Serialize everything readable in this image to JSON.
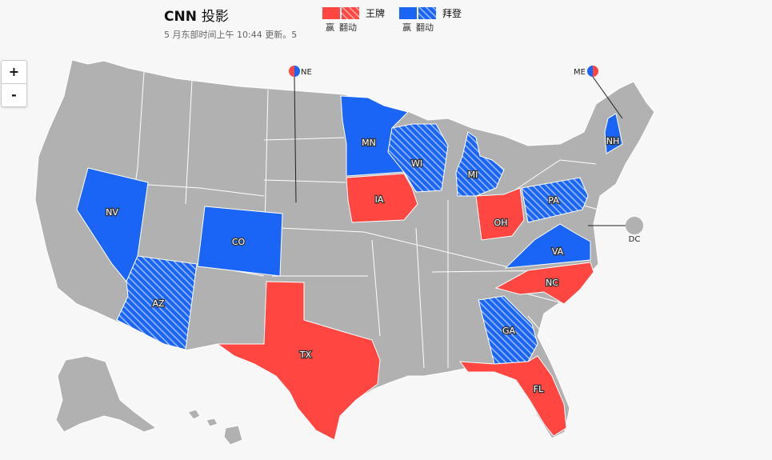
{
  "header": {
    "brand": "CNN",
    "label": "投影",
    "updated": "5 月东部时间上午 10:44 更新。5"
  },
  "legend": [
    {
      "name": "王牌",
      "win_label": "赢",
      "flip_label": "翻动",
      "color": "#ff4641"
    },
    {
      "name": "拜登",
      "win_label": "赢",
      "flip_label": "翻动",
      "color": "#1a65f5"
    }
  ],
  "zoom": {
    "in_label": "+",
    "out_label": "-"
  },
  "colors": {
    "trump": "#ff4641",
    "biden": "#1a65f5",
    "uncalled": "#b1b1b1",
    "border": "#ffffff",
    "background": "#f7f7f7"
  },
  "states": [
    {
      "abbr": "NV",
      "result": "biden-win"
    },
    {
      "abbr": "AZ",
      "result": "biden-flip"
    },
    {
      "abbr": "CO",
      "result": "biden-win"
    },
    {
      "abbr": "TX",
      "result": "trump-win"
    },
    {
      "abbr": "MN",
      "result": "biden-win"
    },
    {
      "abbr": "IA",
      "result": "trump-win"
    },
    {
      "abbr": "WI",
      "result": "biden-flip"
    },
    {
      "abbr": "MI",
      "result": "biden-flip"
    },
    {
      "abbr": "OH",
      "result": "trump-win"
    },
    {
      "abbr": "PA",
      "result": "biden-flip"
    },
    {
      "abbr": "VA",
      "result": "biden-win"
    },
    {
      "abbr": "NC",
      "result": "trump-win"
    },
    {
      "abbr": "GA",
      "result": "biden-flip"
    },
    {
      "abbr": "FL",
      "result": "trump-win"
    },
    {
      "abbr": "NH",
      "result": "biden-win"
    }
  ],
  "outside_labels": [
    {
      "abbr": "NE",
      "result": "split"
    },
    {
      "abbr": "ME",
      "result": "split"
    },
    {
      "abbr": "DC",
      "result": "uncalled"
    }
  ]
}
